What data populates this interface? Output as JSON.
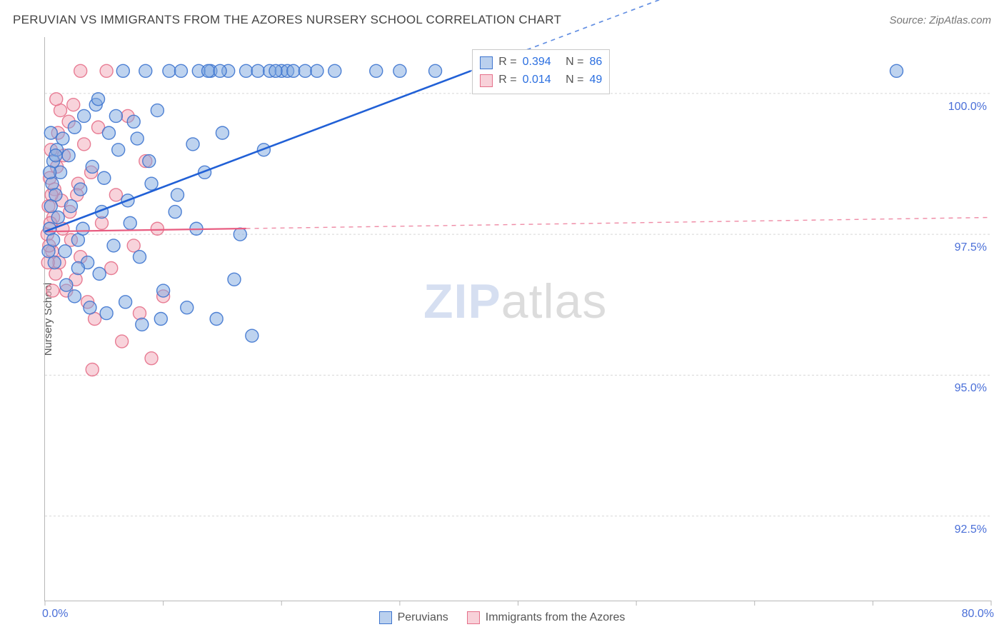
{
  "title": "PERUVIAN VS IMMIGRANTS FROM THE AZORES NURSERY SCHOOL CORRELATION CHART",
  "source": "Source: ZipAtlas.com",
  "ylabel": "Nursery School",
  "watermark": {
    "zip": "ZIP",
    "atlas": "atlas"
  },
  "chart": {
    "type": "scatter",
    "xlim": [
      0,
      80
    ],
    "ylim": [
      91,
      101
    ],
    "ytick_labels": [
      "100.0%",
      "97.5%",
      "95.0%",
      "92.5%"
    ],
    "ytick_values": [
      100.0,
      97.5,
      95.0,
      92.5
    ],
    "xtick_values": [
      0,
      10,
      20,
      30,
      40,
      50,
      60,
      70,
      80
    ],
    "xtick_labels": {
      "0": "0.0%",
      "80": "80.0%"
    },
    "grid_color": "#d8d8d8",
    "grid_dash": "3,3",
    "marker_radius": 9,
    "marker_opacity": 0.5,
    "marker_stroke_width": 1.4,
    "series": {
      "blue": {
        "label": "Peruvians",
        "fill": "#7ea7e0",
        "stroke": "#3d74cf",
        "R": "0.394",
        "N": "86",
        "trend": {
          "x1": 0,
          "y1": 97.55,
          "x2": 36,
          "y2": 100.4,
          "solid_xmax": 36,
          "stroke": "#2160d6",
          "width": 2.6
        },
        "points": [
          [
            0.4,
            97.6
          ],
          [
            0.5,
            98.0
          ],
          [
            0.6,
            98.4
          ],
          [
            0.7,
            98.8
          ],
          [
            0.8,
            97.0
          ],
          [
            0.9,
            98.2
          ],
          [
            1.0,
            99.0
          ],
          [
            1.1,
            97.8
          ],
          [
            1.3,
            98.6
          ],
          [
            1.5,
            99.2
          ],
          [
            1.7,
            97.2
          ],
          [
            2.0,
            98.9
          ],
          [
            2.2,
            98.0
          ],
          [
            2.5,
            99.4
          ],
          [
            2.8,
            97.4
          ],
          [
            3.0,
            98.3
          ],
          [
            3.3,
            99.6
          ],
          [
            3.6,
            97.0
          ],
          [
            4.0,
            98.7
          ],
          [
            4.3,
            99.8
          ],
          [
            4.6,
            96.8
          ],
          [
            5.0,
            98.5
          ],
          [
            5.4,
            99.3
          ],
          [
            5.8,
            97.3
          ],
          [
            6.2,
            99.0
          ],
          [
            6.6,
            100.4
          ],
          [
            7.0,
            98.1
          ],
          [
            7.5,
            99.5
          ],
          [
            8.0,
            97.1
          ],
          [
            8.5,
            100.4
          ],
          [
            9.0,
            98.4
          ],
          [
            9.5,
            99.7
          ],
          [
            10.0,
            96.5
          ],
          [
            10.5,
            100.4
          ],
          [
            11.0,
            97.9
          ],
          [
            11.5,
            100.4
          ],
          [
            12.0,
            96.2
          ],
          [
            12.5,
            99.1
          ],
          [
            13.0,
            100.4
          ],
          [
            13.5,
            98.6
          ],
          [
            14.0,
            100.4
          ],
          [
            14.5,
            96.0
          ],
          [
            15.0,
            99.3
          ],
          [
            15.5,
            100.4
          ],
          [
            16.0,
            96.7
          ],
          [
            16.5,
            97.5
          ],
          [
            17.0,
            100.4
          ],
          [
            17.5,
            95.7
          ],
          [
            18.0,
            100.4
          ],
          [
            18.5,
            99.0
          ],
          [
            19.0,
            100.4
          ],
          [
            20.0,
            100.4
          ],
          [
            20.5,
            100.4
          ],
          [
            21.0,
            100.4
          ],
          [
            22.0,
            100.4
          ],
          [
            23.0,
            100.4
          ],
          [
            24.5,
            100.4
          ],
          [
            28.0,
            100.4
          ],
          [
            30.0,
            100.4
          ],
          [
            33.0,
            100.4
          ],
          [
            2.5,
            96.4
          ],
          [
            3.8,
            96.2
          ],
          [
            5.2,
            96.1
          ],
          [
            6.8,
            96.3
          ],
          [
            8.2,
            95.9
          ],
          [
            9.8,
            96.0
          ],
          [
            4.5,
            99.9
          ],
          [
            6.0,
            99.6
          ],
          [
            7.8,
            99.2
          ],
          [
            3.2,
            97.6
          ],
          [
            4.8,
            97.9
          ],
          [
            7.2,
            97.7
          ],
          [
            8.8,
            98.8
          ],
          [
            11.2,
            98.2
          ],
          [
            12.8,
            97.6
          ],
          [
            1.8,
            96.6
          ],
          [
            2.8,
            96.9
          ],
          [
            0.3,
            97.2
          ],
          [
            0.4,
            98.6
          ],
          [
            0.5,
            99.3
          ],
          [
            0.7,
            97.4
          ],
          [
            0.9,
            98.9
          ],
          [
            72.0,
            100.4
          ],
          [
            13.8,
            100.4
          ],
          [
            14.8,
            100.4
          ],
          [
            19.5,
            100.4
          ]
        ]
      },
      "pink": {
        "label": "Immigrants from the Azores",
        "fill": "#f2a8b8",
        "stroke": "#e5708a",
        "R": "0.014",
        "N": "49",
        "trend": {
          "x1": 0,
          "y1": 97.55,
          "x2": 80,
          "y2": 97.8,
          "solid_xmax": 17,
          "stroke": "#e85d81",
          "width": 2.2
        },
        "points": [
          [
            0.2,
            97.5
          ],
          [
            0.3,
            98.0
          ],
          [
            0.4,
            98.5
          ],
          [
            0.5,
            99.0
          ],
          [
            0.6,
            97.2
          ],
          [
            0.7,
            97.8
          ],
          [
            0.8,
            98.3
          ],
          [
            0.9,
            96.8
          ],
          [
            1.0,
            98.7
          ],
          [
            1.1,
            99.3
          ],
          [
            1.2,
            97.0
          ],
          [
            1.4,
            98.1
          ],
          [
            1.6,
            98.9
          ],
          [
            1.8,
            96.5
          ],
          [
            2.0,
            99.5
          ],
          [
            2.2,
            97.4
          ],
          [
            2.4,
            99.8
          ],
          [
            2.6,
            96.7
          ],
          [
            2.8,
            98.4
          ],
          [
            3.0,
            97.1
          ],
          [
            3.3,
            99.1
          ],
          [
            3.6,
            96.3
          ],
          [
            3.9,
            98.6
          ],
          [
            4.2,
            96.0
          ],
          [
            4.5,
            99.4
          ],
          [
            4.8,
            97.7
          ],
          [
            5.2,
            100.4
          ],
          [
            5.6,
            96.9
          ],
          [
            6.0,
            98.2
          ],
          [
            6.5,
            95.6
          ],
          [
            7.0,
            99.6
          ],
          [
            7.5,
            97.3
          ],
          [
            8.0,
            96.1
          ],
          [
            8.5,
            98.8
          ],
          [
            9.0,
            95.3
          ],
          [
            9.5,
            97.6
          ],
          [
            10.0,
            96.4
          ],
          [
            3.0,
            100.4
          ],
          [
            1.5,
            97.6
          ],
          [
            2.1,
            97.9
          ],
          [
            2.7,
            98.2
          ],
          [
            0.25,
            97.0
          ],
          [
            0.35,
            97.3
          ],
          [
            0.45,
            97.7
          ],
          [
            0.55,
            98.2
          ],
          [
            0.65,
            96.5
          ],
          [
            4.0,
            95.1
          ],
          [
            1.3,
            99.7
          ],
          [
            0.95,
            99.9
          ]
        ]
      }
    }
  },
  "legend_stats": {
    "R_label": "R =",
    "N_label": "N ="
  },
  "bottom_legend": {
    "blue": "Peruvians",
    "pink": "Immigrants from the Azores"
  }
}
